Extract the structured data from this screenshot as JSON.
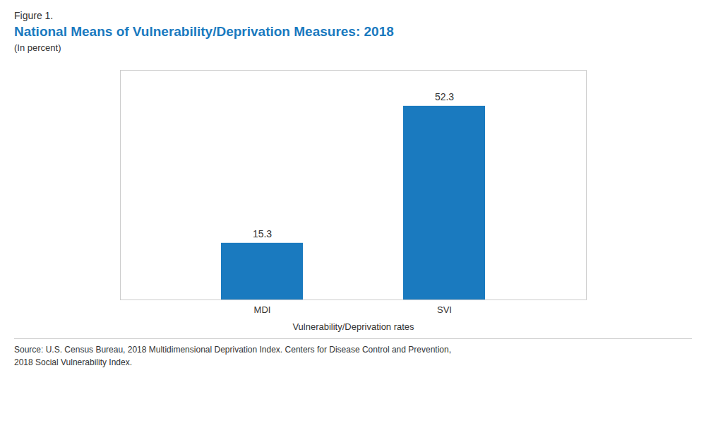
{
  "chart_data": {
    "type": "bar",
    "figure_label": "Figure 1.",
    "title": "National Means of Vulnerability/Deprivation Measures: 2018",
    "subtitle": "(In percent)",
    "xlabel": "Vulnerability/Deprivation rates",
    "source": "Source: U.S. Census Bureau, 2018 Multidimensional Deprivation Index. Centers for Disease Control and Prevention,\n2018 Social Vulnerability Index.",
    "categories": [
      "MDI",
      "SVI"
    ],
    "values": [
      15.3,
      52.3
    ],
    "color": "#1a7abf",
    "ylim": [
      0,
      62
    ],
    "yticks": [],
    "grid": false,
    "data_labels": true,
    "tick_labels": "x"
  }
}
